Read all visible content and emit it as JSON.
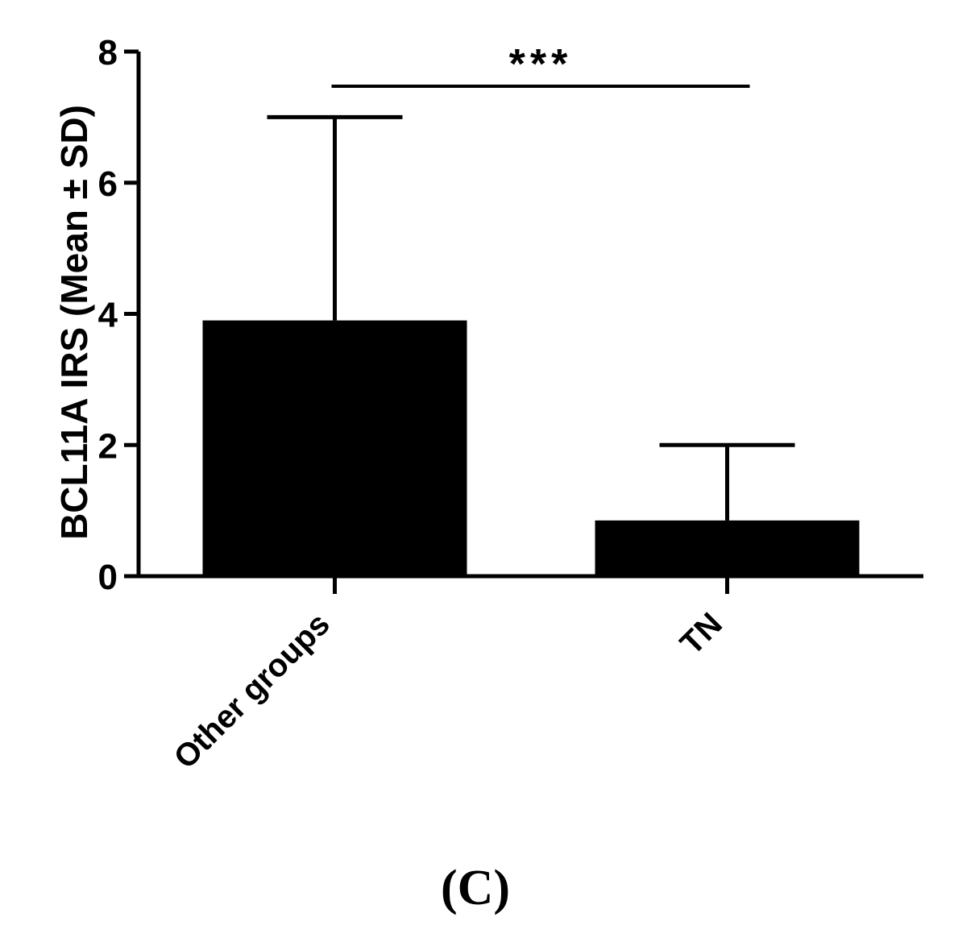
{
  "chart_data": {
    "type": "bar",
    "categories": [
      "Other groups",
      "TN"
    ],
    "values": [
      3.9,
      0.85
    ],
    "error_upper": [
      7.0,
      2.0
    ],
    "ylabel": "BCL11A IRS (Mean ± SD)",
    "ylim": [
      0,
      8
    ],
    "yticks": [
      "0",
      "2",
      "4",
      "6",
      "8"
    ],
    "significance": {
      "between": [
        "Other groups",
        "TN"
      ],
      "label": "***"
    },
    "bar_color": "#000000",
    "grid": false,
    "legend": "none"
  },
  "panel_label": "(C)"
}
